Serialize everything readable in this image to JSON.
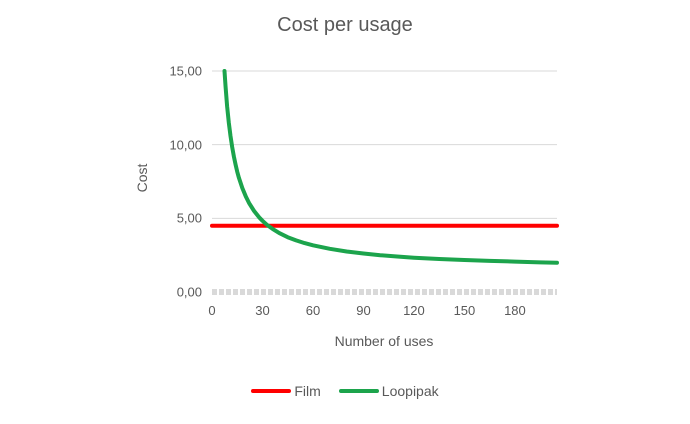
{
  "chart_data": {
    "type": "line",
    "title": "Cost per usage",
    "xlabel": "Number of uses",
    "ylabel": "Cost",
    "xlim": [
      0,
      205
    ],
    "ylim": [
      0,
      15
    ],
    "grid": "horizontal gridlines at each y tick; zero line drawn as thick dashed light-grey band",
    "legend_position": "bottom-center",
    "colors": {
      "text": "#595959",
      "gridline": "#D9D9D9",
      "film": "#FF0000",
      "loopipak": "#1CA44C"
    },
    "x_ticks": [
      {
        "value": 0,
        "label": "0"
      },
      {
        "value": 30,
        "label": "30"
      },
      {
        "value": 60,
        "label": "60"
      },
      {
        "value": 90,
        "label": "90"
      },
      {
        "value": 120,
        "label": "120"
      },
      {
        "value": 150,
        "label": "150"
      },
      {
        "value": 180,
        "label": "180"
      }
    ],
    "y_ticks": [
      {
        "value": 15,
        "label": "15,00"
      },
      {
        "value": 10,
        "label": "10,00"
      },
      {
        "value": 5,
        "label": "5,00"
      },
      {
        "value": 0,
        "label": "0,00"
      }
    ],
    "series": [
      {
        "name": "Film",
        "color": "#FF0000",
        "line_width": 4,
        "points": [
          [
            0,
            4.5
          ],
          [
            205,
            4.5
          ]
        ]
      },
      {
        "name": "Loopipak",
        "color": "#1CA44C",
        "line_width": 4,
        "points": [
          [
            7.4,
            15.0
          ],
          [
            8,
            14.0
          ],
          [
            9,
            12.61
          ],
          [
            10,
            11.5
          ],
          [
            11,
            10.59
          ],
          [
            12,
            9.83
          ],
          [
            13,
            9.19
          ],
          [
            14,
            8.64
          ],
          [
            15,
            8.17
          ],
          [
            16,
            7.75
          ],
          [
            18,
            7.06
          ],
          [
            20,
            6.5
          ],
          [
            22,
            6.05
          ],
          [
            25,
            5.5
          ],
          [
            28,
            5.07
          ],
          [
            30,
            4.83
          ],
          [
            33,
            4.53
          ],
          [
            36,
            4.28
          ],
          [
            40,
            4.0
          ],
          [
            45,
            3.72
          ],
          [
            50,
            3.5
          ],
          [
            55,
            3.32
          ],
          [
            60,
            3.17
          ],
          [
            70,
            2.93
          ],
          [
            80,
            2.75
          ],
          [
            90,
            2.61
          ],
          [
            100,
            2.5
          ],
          [
            110,
            2.41
          ],
          [
            120,
            2.33
          ],
          [
            135,
            2.24
          ],
          [
            150,
            2.17
          ],
          [
            165,
            2.11
          ],
          [
            180,
            2.06
          ],
          [
            195,
            2.01
          ],
          [
            205,
            1.99
          ]
        ]
      }
    ]
  }
}
